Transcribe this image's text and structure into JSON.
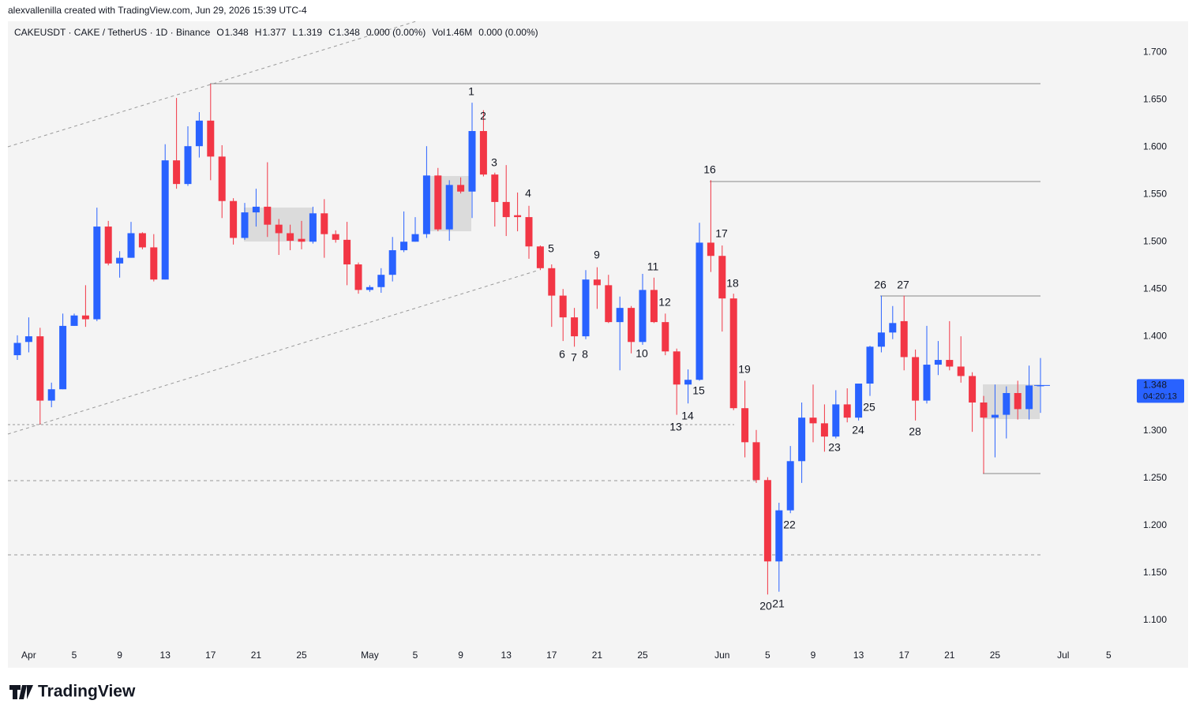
{
  "header": {
    "credit": "alexvallenilla created with TradingView.com, Jun 29, 2026 15:39 UTC-4"
  },
  "footer": {
    "brand": "TradingView"
  },
  "chart_data": {
    "type": "candlestick",
    "symbol": "CAKEUSDT · CAKE / TetherUS · 1D · Binance",
    "legend": [
      {
        "key": "O",
        "value": 1.348
      },
      {
        "key": "H",
        "value": 1.377
      },
      {
        "key": "L",
        "value": 1.319
      },
      {
        "key": "C",
        "value": 1.348
      },
      {
        "key": "",
        "value": "0.000 (0.00%)"
      },
      {
        "key": "Vol",
        "value": "1.46M"
      },
      {
        "key": "",
        "value": "0.000 (0.00%)"
      }
    ],
    "up_color": "#2962ff",
    "down_color": "#f23645",
    "grid": false,
    "ylim": [
      1.073,
      1.733
    ],
    "yticks": [
      {
        "value": 1.1,
        "label": "1.100"
      },
      {
        "value": 1.15,
        "label": "1.150"
      },
      {
        "value": 1.2,
        "label": "1.200"
      },
      {
        "value": 1.25,
        "label": "1.250"
      },
      {
        "value": 1.3,
        "label": "1.300"
      },
      {
        "value": 1.35,
        "label": "1.350"
      },
      {
        "value": 1.4,
        "label": "1.400"
      },
      {
        "value": 1.45,
        "label": "1.450"
      },
      {
        "value": 1.5,
        "label": "1.500"
      },
      {
        "value": 1.55,
        "label": "1.550"
      },
      {
        "value": 1.6,
        "label": "1.600"
      },
      {
        "value": 1.65,
        "label": "1.650"
      },
      {
        "value": 1.7,
        "label": "1.700"
      }
    ],
    "categories": [
      null,
      "Apr",
      null,
      null,
      null,
      "5",
      null,
      null,
      null,
      "9",
      null,
      null,
      null,
      "13",
      null,
      null,
      null,
      "17",
      null,
      null,
      null,
      "21",
      null,
      null,
      null,
      "25",
      null,
      null,
      null,
      null,
      null,
      "May",
      null,
      null,
      null,
      "5",
      null,
      null,
      null,
      "9",
      null,
      null,
      null,
      "13",
      null,
      null,
      null,
      "17",
      null,
      null,
      null,
      "21",
      null,
      null,
      null,
      "25",
      null,
      null,
      null,
      null,
      null,
      null,
      "Jun",
      null,
      null,
      null,
      "5",
      null,
      null,
      null,
      "9",
      null,
      null,
      null,
      "13",
      null,
      null,
      null,
      "17",
      null,
      null,
      null,
      "21",
      null,
      null,
      null,
      "25",
      null,
      null,
      null,
      null,
      null,
      "Jul",
      null,
      null,
      null,
      "5"
    ],
    "open": [
      1.38,
      1.394,
      1.4,
      1.332,
      1.344,
      1.411,
      1.422,
      1.418,
      1.516,
      1.477,
      1.483,
      1.509,
      1.494,
      1.46,
      1.586,
      1.561,
      1.601,
      1.628,
      1.59,
      1.543,
      1.504,
      1.531,
      1.537,
      1.518,
      1.509,
      1.503,
      1.5,
      1.53,
      1.508,
      1.502,
      1.476,
      1.449,
      1.452,
      1.465,
      1.491,
      1.5,
      1.508,
      1.57,
      1.513,
      1.56,
      1.553,
      1.617,
      1.571,
      1.542,
      1.528,
      1.526,
      1.495,
      1.472,
      1.443,
      1.42,
      1.4,
      1.46,
      1.454,
      1.415,
      1.43,
      1.394,
      1.449,
      1.415,
      1.384,
      1.349,
      1.354,
      1.499,
      1.485,
      1.44,
      1.324,
      1.288,
      1.248,
      1.162,
      1.216,
      1.268,
      1.314,
      1.308,
      1.294,
      1.328,
      1.314,
      1.35,
      1.389,
      1.404,
      1.416,
      1.378,
      1.332,
      1.37,
      1.375,
      1.368,
      1.358,
      1.33,
      1.314,
      1.317,
      1.34,
      1.323,
      1.348,
      null,
      null,
      null,
      null,
      null,
      null
    ],
    "high": [
      1.401,
      1.42,
      1.409,
      1.351,
      1.424,
      1.424,
      1.454,
      1.536,
      1.522,
      1.49,
      1.521,
      1.51,
      1.508,
      1.603,
      1.652,
      1.622,
      1.637,
      1.667,
      1.602,
      1.546,
      1.541,
      1.556,
      1.584,
      1.524,
      1.518,
      1.522,
      1.537,
      1.545,
      1.512,
      1.521,
      1.478,
      1.454,
      1.472,
      1.505,
      1.532,
      1.526,
      1.601,
      1.578,
      1.565,
      1.568,
      1.647,
      1.639,
      1.573,
      1.581,
      1.552,
      1.538,
      1.496,
      1.476,
      1.45,
      1.43,
      1.47,
      1.473,
      1.465,
      1.442,
      1.432,
      1.466,
      1.462,
      1.424,
      1.387,
      1.365,
      1.52,
      1.565,
      1.496,
      1.445,
      1.353,
      1.301,
      1.251,
      1.224,
      1.284,
      1.33,
      1.349,
      1.328,
      1.343,
      1.345,
      1.35,
      1.39,
      1.443,
      1.432,
      1.443,
      1.386,
      1.411,
      1.395,
      1.416,
      1.4,
      1.362,
      1.337,
      1.349,
      1.347,
      1.353,
      1.369,
      1.377,
      null,
      null,
      null,
      null,
      null,
      null
    ],
    "low": [
      1.375,
      1.383,
      1.307,
      1.325,
      1.344,
      1.411,
      1.41,
      1.416,
      1.475,
      1.462,
      1.483,
      1.492,
      1.458,
      1.46,
      1.556,
      1.559,
      1.589,
      1.565,
      1.525,
      1.497,
      1.502,
      1.516,
      1.505,
      1.486,
      1.491,
      1.492,
      1.498,
      1.483,
      1.499,
      1.454,
      1.445,
      1.447,
      1.446,
      1.458,
      1.489,
      1.5,
      1.504,
      1.511,
      1.501,
      1.551,
      1.525,
      1.569,
      1.516,
      1.506,
      1.511,
      1.482,
      1.47,
      1.41,
      1.395,
      1.389,
      1.397,
      1.429,
      1.414,
      1.364,
      1.382,
      1.391,
      1.414,
      1.38,
      1.317,
      1.329,
      1.353,
      1.468,
      1.405,
      1.322,
      1.272,
      1.245,
      1.127,
      1.13,
      1.213,
      1.245,
      1.288,
      1.278,
      1.292,
      1.309,
      1.311,
      1.337,
      1.383,
      1.397,
      1.364,
      1.311,
      1.329,
      1.359,
      1.364,
      1.351,
      1.299,
      1.255,
      1.272,
      1.292,
      1.312,
      1.312,
      1.319,
      null,
      null,
      null,
      null,
      null,
      null
    ],
    "close": [
      1.393,
      1.4,
      1.332,
      1.344,
      1.411,
      1.422,
      1.418,
      1.516,
      1.477,
      1.483,
      1.509,
      1.494,
      1.46,
      1.586,
      1.561,
      1.601,
      1.628,
      1.59,
      1.543,
      1.504,
      1.531,
      1.537,
      1.518,
      1.509,
      1.501,
      1.5,
      1.53,
      1.508,
      1.502,
      1.476,
      1.449,
      1.452,
      1.465,
      1.491,
      1.5,
      1.508,
      1.57,
      1.513,
      1.56,
      1.553,
      1.617,
      1.571,
      1.542,
      1.526,
      1.526,
      1.495,
      1.472,
      1.443,
      1.42,
      1.4,
      1.46,
      1.454,
      1.415,
      1.43,
      1.394,
      1.449,
      1.415,
      1.384,
      1.349,
      1.354,
      1.499,
      1.485,
      1.44,
      1.324,
      1.288,
      1.248,
      1.162,
      1.216,
      1.268,
      1.314,
      1.308,
      1.294,
      1.328,
      1.314,
      1.35,
      1.389,
      1.404,
      1.414,
      1.378,
      1.332,
      1.37,
      1.375,
      1.368,
      1.358,
      1.33,
      1.314,
      1.317,
      1.34,
      1.323,
      1.348,
      1.348,
      null,
      null,
      null,
      null,
      null,
      null
    ],
    "last_price": {
      "value": 1.348,
      "countdown": "04:20:13"
    },
    "annotations": [
      "1",
      "2",
      "3",
      "4",
      "5",
      "6",
      "7",
      "8",
      "9",
      "10",
      "11",
      "12",
      "13",
      "14",
      "15",
      "16",
      "17",
      "18",
      "19",
      "20",
      "21",
      "22",
      "23",
      "24",
      "25",
      "26",
      "27",
      "28"
    ]
  }
}
